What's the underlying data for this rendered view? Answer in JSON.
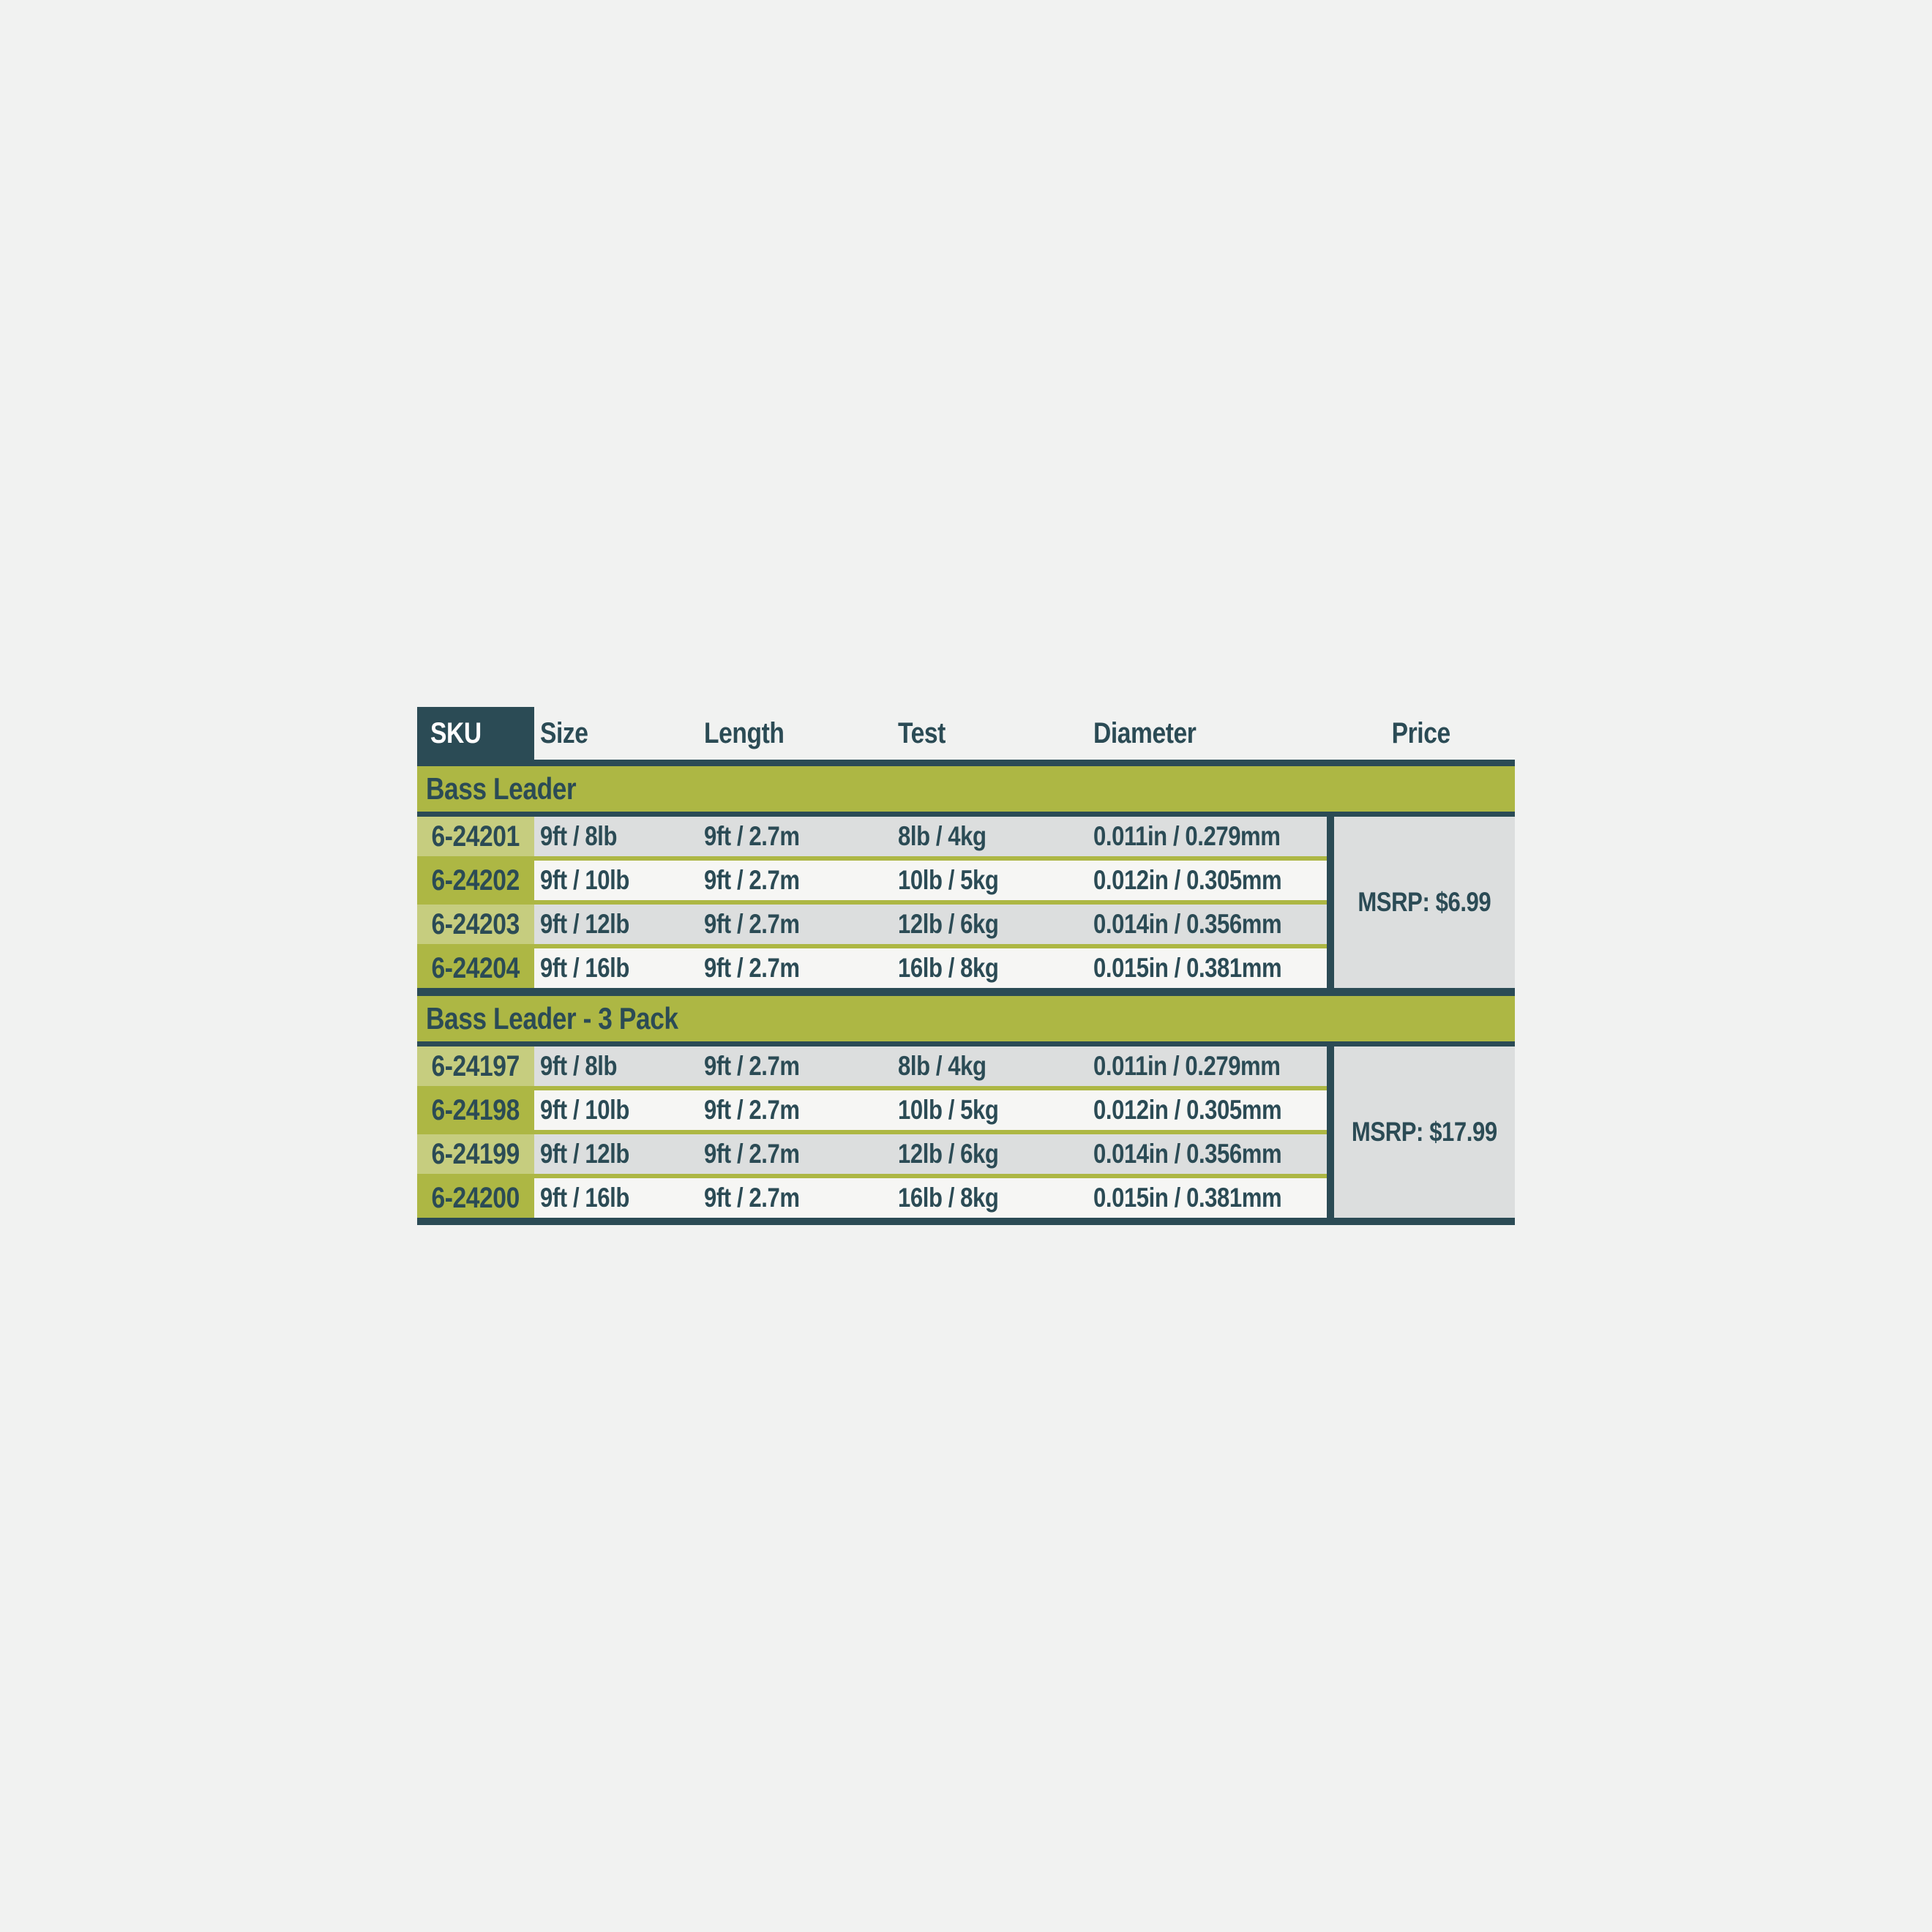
{
  "colors": {
    "teal": "#2B4B55",
    "olive": "#ADB744",
    "olive-light": "#C6CD7F",
    "gray": "#DCDEDE",
    "offwhite": "#F6F6F4",
    "page": "#F1F2F1"
  },
  "table": {
    "headers": [
      "SKU",
      "Size",
      "Length",
      "Test",
      "Diameter",
      "Price"
    ],
    "sections": [
      {
        "label": "Bass Leader",
        "price": "MSRP: $6.99",
        "rows": [
          {
            "sku": "6-24201",
            "size": "9ft / 8lb",
            "length": "9ft / 2.7m",
            "test": "8lb / 4kg",
            "diameter": "0.011in / 0.279mm"
          },
          {
            "sku": "6-24202",
            "size": "9ft / 10lb",
            "length": "9ft / 2.7m",
            "test": "10lb / 5kg",
            "diameter": "0.012in / 0.305mm"
          },
          {
            "sku": "6-24203",
            "size": "9ft / 12lb",
            "length": "9ft / 2.7m",
            "test": "12lb / 6kg",
            "diameter": "0.014in / 0.356mm"
          },
          {
            "sku": "6-24204",
            "size": "9ft / 16lb",
            "length": "9ft / 2.7m",
            "test": "16lb / 8kg",
            "diameter": "0.015in / 0.381mm"
          }
        ]
      },
      {
        "label": "Bass Leader - 3 Pack",
        "price": "MSRP: $17.99",
        "rows": [
          {
            "sku": "6-24197",
            "size": "9ft / 8lb",
            "length": "9ft / 2.7m",
            "test": "8lb / 4kg",
            "diameter": "0.011in / 0.279mm"
          },
          {
            "sku": "6-24198",
            "size": "9ft / 10lb",
            "length": "9ft / 2.7m",
            "test": "10lb / 5kg",
            "diameter": "0.012in / 0.305mm"
          },
          {
            "sku": "6-24199",
            "size": "9ft / 12lb",
            "length": "9ft / 2.7m",
            "test": "12lb / 6kg",
            "diameter": "0.014in / 0.356mm"
          },
          {
            "sku": "6-24200",
            "size": "9ft / 16lb",
            "length": "9ft / 2.7m",
            "test": "16lb / 8kg",
            "diameter": "0.015in / 0.381mm"
          }
        ]
      }
    ]
  }
}
